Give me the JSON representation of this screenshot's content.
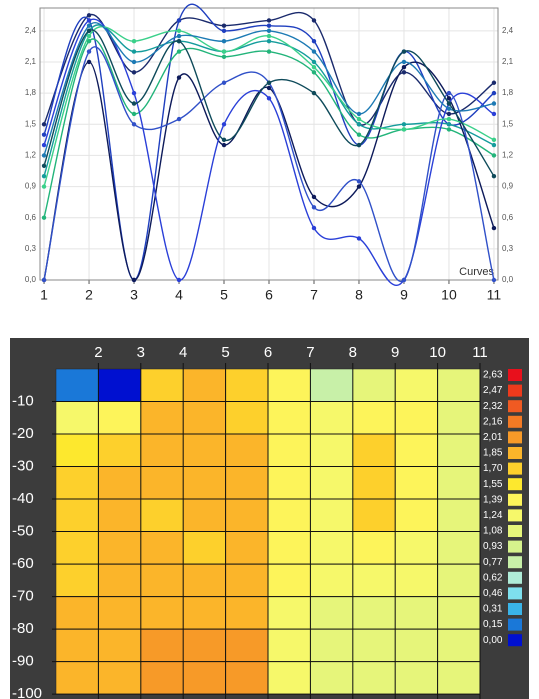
{
  "chart_data": [
    {
      "type": "line",
      "annotation": "Curves",
      "x": [
        1,
        2,
        3,
        4,
        5,
        6,
        7,
        8,
        9,
        10,
        11
      ],
      "xlim": [
        0.91,
        11.09
      ],
      "xticks": [
        1,
        2,
        3,
        4,
        5,
        6,
        7,
        8,
        9,
        10,
        11
      ],
      "ylim": [
        0,
        2.62
      ],
      "yticks": [
        {
          "value": 0,
          "label": "0,0"
        },
        {
          "value": 0.3,
          "label": "0,3"
        },
        {
          "value": 0.6,
          "label": "0,6"
        },
        {
          "value": 0.9,
          "label": "0,9"
        },
        {
          "value": 1.2,
          "label": "1,2"
        },
        {
          "value": 1.5,
          "label": "1,5"
        },
        {
          "value": 1.8,
          "label": "1,8"
        },
        {
          "value": 2.1,
          "label": "2,1"
        },
        {
          "value": 2.4,
          "label": "2,4"
        }
      ],
      "grid": true,
      "series": [
        {
          "color": "#1a2a6c",
          "values": [
            1.5,
            2.55,
            2.0,
            2.5,
            2.45,
            2.5,
            2.5,
            1.5,
            2.0,
            1.6,
            1.9
          ]
        },
        {
          "color": "#1f3fbf",
          "values": [
            1.4,
            2.5,
            0.0,
            2.5,
            2.4,
            2.45,
            2.3,
            1.3,
            2.2,
            1.5,
            1.8
          ]
        },
        {
          "color": "#149c9c",
          "values": [
            1.0,
            2.4,
            2.2,
            2.3,
            2.2,
            2.3,
            2.1,
            1.5,
            1.5,
            1.5,
            1.3
          ]
        },
        {
          "color": "#22b47a",
          "values": [
            0.6,
            2.3,
            1.6,
            2.2,
            2.15,
            2.2,
            2.0,
            1.4,
            1.45,
            1.45,
            1.2
          ]
        },
        {
          "color": "#0d1a5a",
          "values": [
            0.0,
            2.1,
            0.0,
            1.95,
            1.3,
            1.85,
            0.8,
            0.9,
            2.05,
            1.75,
            0.5
          ]
        },
        {
          "color": "#2a3fd8",
          "values": [
            1.3,
            2.5,
            1.8,
            0.0,
            1.5,
            1.75,
            0.5,
            0.4,
            0.0,
            1.7,
            1.6
          ]
        },
        {
          "color": "#3050c8",
          "values": [
            0.0,
            2.2,
            1.5,
            1.55,
            1.9,
            1.9,
            0.7,
            0.95,
            0.0,
            1.8,
            0.0
          ]
        },
        {
          "color": "#3ad08a",
          "values": [
            0.9,
            2.35,
            2.3,
            2.4,
            2.2,
            2.35,
            2.05,
            1.55,
            1.45,
            1.55,
            1.35
          ]
        },
        {
          "color": "#1c7ab4",
          "values": [
            1.2,
            2.45,
            2.1,
            2.35,
            2.3,
            2.4,
            2.2,
            1.6,
            2.1,
            1.65,
            1.7
          ]
        },
        {
          "color": "#0e4a5a",
          "values": [
            1.1,
            2.4,
            1.7,
            2.3,
            1.35,
            1.9,
            1.8,
            1.3,
            2.2,
            1.7,
            1.0
          ]
        }
      ]
    },
    {
      "type": "heatmap",
      "xlim": [
        1,
        11
      ],
      "xticks": [
        2,
        3,
        4,
        5,
        6,
        7,
        8,
        9,
        10,
        11
      ],
      "ylim": [
        0,
        -101.5
      ],
      "yticks": [
        -10,
        -20,
        -30,
        -40,
        -50,
        -60,
        -70,
        -80,
        -90,
        -100
      ],
      "xbins": [
        1,
        2,
        3,
        4,
        5,
        6,
        7,
        8,
        9,
        10,
        11
      ],
      "ybins": [
        0,
        -10,
        -20,
        -30,
        -40,
        -50,
        -60,
        -70,
        -80,
        -90,
        -100
      ],
      "values": [
        [
          0.3,
          0.1,
          1.8,
          1.9,
          1.7,
          1.5,
          0.8,
          1.2,
          1.3,
          1.2
        ],
        [
          1.3,
          1.5,
          1.9,
          1.9,
          1.8,
          1.5,
          1.3,
          1.5,
          1.4,
          1.2
        ],
        [
          1.6,
          1.8,
          1.9,
          2.0,
          2.0,
          1.4,
          1.3,
          1.8,
          1.4,
          1.2
        ],
        [
          1.7,
          1.9,
          1.9,
          2.0,
          2.0,
          1.4,
          1.3,
          1.8,
          1.4,
          1.2
        ],
        [
          1.8,
          1.9,
          1.8,
          1.9,
          2.0,
          1.4,
          1.3,
          1.7,
          1.4,
          1.2
        ],
        [
          1.8,
          1.9,
          1.9,
          1.8,
          1.9,
          1.4,
          1.3,
          1.4,
          1.3,
          1.2
        ],
        [
          1.8,
          1.9,
          1.9,
          1.9,
          1.9,
          1.4,
          1.3,
          1.3,
          1.3,
          1.2
        ],
        [
          1.9,
          2.0,
          2.0,
          2.0,
          2.0,
          1.3,
          1.2,
          1.2,
          1.2,
          1.2
        ],
        [
          1.9,
          2.0,
          2.1,
          2.1,
          2.1,
          1.3,
          1.2,
          1.2,
          1.2,
          1.2
        ],
        [
          1.9,
          2.0,
          2.1,
          2.1,
          2.1,
          1.3,
          1.2,
          1.2,
          1.2,
          1.2
        ]
      ],
      "legend": [
        {
          "value": 2.63,
          "label": "2,63",
          "color": "#e8101c"
        },
        {
          "value": 2.47,
          "label": "2,47",
          "color": "#ee3a1c"
        },
        {
          "value": 2.32,
          "label": "2,32",
          "color": "#f05a22"
        },
        {
          "value": 2.16,
          "label": "2,16",
          "color": "#f47a24"
        },
        {
          "value": 2.01,
          "label": "2,01",
          "color": "#f79a28"
        },
        {
          "value": 1.85,
          "label": "1,85",
          "color": "#fbb52a"
        },
        {
          "value": 1.7,
          "label": "1,70",
          "color": "#fdd02c"
        },
        {
          "value": 1.55,
          "label": "1,55",
          "color": "#fde82e"
        },
        {
          "value": 1.39,
          "label": "1,39",
          "color": "#fdf45a"
        },
        {
          "value": 1.24,
          "label": "1,24",
          "color": "#f6f86a"
        },
        {
          "value": 1.08,
          "label": "1,08",
          "color": "#e6f57a"
        },
        {
          "value": 0.93,
          "label": "0,93",
          "color": "#d6f28c"
        },
        {
          "value": 0.77,
          "label": "0,77",
          "color": "#c8f0a8"
        },
        {
          "value": 0.62,
          "label": "0,62",
          "color": "#b0ecd8"
        },
        {
          "value": 0.46,
          "label": "0,46",
          "color": "#7ee0ee"
        },
        {
          "value": 0.31,
          "label": "0,31",
          "color": "#3ab4e8"
        },
        {
          "value": 0.15,
          "label": "0,15",
          "color": "#1a78d8"
        },
        {
          "value": 0.0,
          "label": "0,00",
          "color": "#0010d0"
        }
      ]
    }
  ]
}
